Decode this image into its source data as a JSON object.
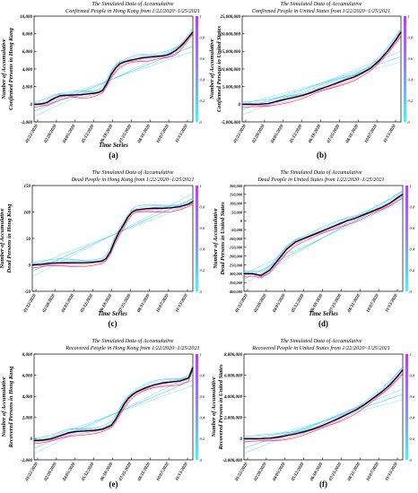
{
  "chart_data": [
    {
      "type": "line",
      "panel_label": "(a)",
      "title_line1": "The Simulated Data of Accumulative",
      "title_line2": "Confirmed People in Hong Kong from 1/22/2020~1/25/2021",
      "xlabel": "Time Series",
      "ylabel_line1": "Number of Accumulative",
      "ylabel_line2": "Confirmed Persons in Hong Kong",
      "x_tick_labels": [
        "01/22/2020",
        "02/28/2020",
        "04/05/2020",
        "05/12/2020",
        "06/18/2020",
        "07/25/2020",
        "08/31/2020",
        "10/07/2020",
        "11/13/2020"
      ],
      "y_tick_labels": [
        "-2,000",
        "0",
        "2,000",
        "4,000",
        "6,000",
        "8,000",
        "10,000"
      ],
      "ylim": [
        -2000,
        10000
      ],
      "colorbar_ticks": [
        "0",
        "0.2",
        "0.4",
        "0.6",
        "0.8",
        "1"
      ],
      "x": [
        0,
        10,
        20,
        30,
        40,
        50,
        60,
        70,
        80,
        90,
        100,
        110,
        120,
        130,
        140,
        150,
        160,
        170,
        180,
        190,
        200,
        210,
        220,
        230,
        240,
        250,
        260,
        270,
        280,
        290,
        300,
        310,
        320,
        330,
        340,
        350,
        360,
        370
      ],
      "values": [
        0,
        20,
        80,
        200,
        500,
        750,
        950,
        1000,
        1030,
        1050,
        1070,
        1100,
        1150,
        1200,
        1250,
        1350,
        1600,
        2400,
        3400,
        4100,
        4600,
        4800,
        4950,
        5050,
        5150,
        5250,
        5300,
        5350,
        5400,
        5450,
        5500,
        5600,
        5800,
        6100,
        6500,
        7000,
        7600,
        8200
      ],
      "trend": [
        -800,
        6600
      ]
    },
    {
      "type": "line",
      "panel_label": "(b)",
      "title_line1": "The Simulated Data of Accumulative",
      "title_line2": "Confirmed People in United States from 1/22/2020~1/25/2021",
      "xlabel": "",
      "ylabel_line1": "Number of Accumulative",
      "ylabel_line2": "Confirmed Persons in United States",
      "x_tick_labels": [
        "01/22/2020",
        "02/28/2020",
        "04/05/2020",
        "05/12/2020",
        "06/18/2020",
        "07/25/2020",
        "08/31/2020",
        "10/07/2020",
        "11/13/2020"
      ],
      "y_tick_labels": [
        "-5,000,000",
        "0",
        "5,000,000",
        "10,000,000",
        "15,000,000",
        "20,000,000",
        "25,000,000"
      ],
      "ylim": [
        -5000000,
        25000000
      ],
      "colorbar_ticks": [
        "0",
        "0.2",
        "0.4",
        "0.6",
        "0.8",
        "1"
      ],
      "x": [
        0,
        20,
        40,
        60,
        80,
        100,
        120,
        140,
        160,
        180,
        200,
        220,
        240,
        260,
        280,
        300,
        320,
        340,
        360,
        370
      ],
      "values": [
        0,
        0,
        10000,
        200000,
        800000,
        1400000,
        1900000,
        2500000,
        3300000,
        4300000,
        5100000,
        6000000,
        6900000,
        7700000,
        8900000,
        10300000,
        12500000,
        15300000,
        18600000,
        20500000
      ],
      "trend": [
        -1500000,
        13500000
      ]
    },
    {
      "type": "line",
      "panel_label": "(c)",
      "title_line1": "The Simulated Data of Accumulative",
      "title_line2": "Dead People in Hong Kong from 1/22/2020~1/25/2021",
      "xlabel": "Time Series",
      "ylabel_line1": "Number of Accumulative",
      "ylabel_line2": "Dead Persons in Hong Kong",
      "x_tick_labels": [
        "01/22/2020",
        "02/28/2020",
        "04/05/2020",
        "05/12/2020",
        "06/18/2020",
        "07/25/2020",
        "08/31/2020",
        "10/07/2020",
        "11/13/2020"
      ],
      "y_tick_labels": [
        "-50",
        "0",
        "50",
        "100",
        "150"
      ],
      "ylim": [
        -50,
        150
      ],
      "colorbar_ticks": [
        "0",
        "0.2",
        "0.4",
        "0.6",
        "0.8",
        "1"
      ],
      "x": [
        0,
        20,
        40,
        60,
        80,
        100,
        120,
        140,
        160,
        170,
        180,
        190,
        200,
        210,
        220,
        230,
        240,
        260,
        280,
        300,
        320,
        340,
        360,
        370
      ],
      "values": [
        0,
        1,
        3,
        4,
        4,
        4,
        4,
        5,
        7,
        12,
        25,
        45,
        62,
        75,
        90,
        100,
        104,
        106,
        107,
        107,
        108,
        110,
        115,
        120
      ],
      "trend": [
        -12,
        125
      ]
    },
    {
      "type": "line",
      "panel_label": "(d)",
      "title_line1": "The Simulated Data of Accumulative",
      "title_line2": "Dead People in United States from 1/22/2020~1/25/2021",
      "xlabel": "Time Series",
      "ylabel_line1": "Number of Accumulative",
      "ylabel_line2": "Dead Persons in United States",
      "x_tick_labels": [
        "01/22/2020",
        "02/28/2020",
        "04/05/2020",
        "05/12/2020",
        "06/18/2020",
        "07/25/2020",
        "08/31/2020",
        "10/07/2020",
        "11/13/2020"
      ],
      "y_tick_labels": [
        "-400,000",
        "-350,000",
        "-300,000",
        "-250,000",
        "-200,000",
        "-150,000",
        "-100,000",
        "-50,000",
        "0",
        "50,000",
        "100,000",
        "150,000",
        "200,000"
      ],
      "ylim": [
        -400000,
        200000
      ],
      "colorbar_ticks": [
        "0",
        "0.2",
        "0.4",
        "0.6",
        "0.8",
        "1"
      ],
      "x": [
        0,
        20,
        40,
        60,
        80,
        100,
        120,
        140,
        160,
        180,
        200,
        220,
        240,
        260,
        280,
        300,
        320,
        340,
        360,
        370
      ],
      "values": [
        -300000,
        -300000,
        -310000,
        -280000,
        -220000,
        -160000,
        -120000,
        -100000,
        -80000,
        -60000,
        -40000,
        -20000,
        0,
        15000,
        35000,
        55000,
        75000,
        100000,
        135000,
        150000
      ],
      "trend": [
        -330000,
        140000
      ]
    },
    {
      "type": "line",
      "panel_label": "(e)",
      "title_line1": "The Simulated Data of Accumulative",
      "title_line2": "Recovered People in Hong Kong from 1/22/2020~1/25/2021",
      "xlabel": "Time Series",
      "ylabel_line1": "Number of Accumulative",
      "ylabel_line2": "Recovered Persons in Hong Kong",
      "x_tick_labels": [
        "01/22/2020",
        "02/28/2020",
        "04/05/2020",
        "05/12/2020",
        "06/18/2020",
        "07/25/2020",
        "08/31/2020",
        "10/07/2020",
        "11/13/2020"
      ],
      "y_tick_labels": [
        "-2,000",
        "0",
        "2,000",
        "4,000",
        "6,000",
        "8,000"
      ],
      "ylim": [
        -2000,
        9000
      ],
      "colorbar_ticks": [
        "0",
        "0.2",
        "0.4",
        "0.6",
        "0.8",
        "1"
      ],
      "x": [
        0,
        20,
        40,
        60,
        80,
        100,
        120,
        140,
        160,
        180,
        190,
        200,
        210,
        220,
        230,
        240,
        260,
        280,
        300,
        320,
        340,
        360,
        370
      ],
      "values": [
        0,
        50,
        200,
        500,
        800,
        950,
        1000,
        1050,
        1200,
        1600,
        2200,
        3000,
        3800,
        4400,
        4800,
        5100,
        5500,
        5800,
        6000,
        6100,
        6200,
        6500,
        7600
      ],
      "trend": [
        -800,
        6300
      ]
    },
    {
      "type": "line",
      "panel_label": "(f)",
      "title_line1": "The Simulated Data of Accumulative",
      "title_line2": "Recovered People in United States from 1/22/2020~1/25/2021",
      "xlabel": "",
      "ylabel_line1": "Number of Accumulative",
      "ylabel_line2": "Recovered Persons in United States",
      "x_tick_labels": [
        "01/22/2020",
        "02/28/2020",
        "04/05/2020",
        "05/12/2020",
        "06/18/2020",
        "07/25/2020",
        "08/31/2020",
        "10/07/2020",
        "11/13/2020"
      ],
      "y_tick_labels": [
        "-2,000,000",
        "0",
        "2,000,000",
        "4,000,000",
        "6,000,000",
        "8,000,000"
      ],
      "ylim": [
        -2000000,
        8000000
      ],
      "colorbar_ticks": [
        "0",
        "0.2",
        "0.4",
        "0.6",
        "0.8",
        "1"
      ],
      "x": [
        0,
        20,
        40,
        60,
        80,
        100,
        120,
        140,
        160,
        180,
        200,
        220,
        240,
        260,
        280,
        300,
        320,
        340,
        360,
        370
      ],
      "values": [
        0,
        0,
        5000,
        50000,
        150000,
        300000,
        450000,
        650000,
        900000,
        1200000,
        1550000,
        1900000,
        2300000,
        2700000,
        3200000,
        3800000,
        4400000,
        5100000,
        6000000,
        6500000
      ],
      "trend": [
        -900000,
        4200000
      ]
    }
  ],
  "colors": {
    "observed": "#000000",
    "fit_curves": [
      "#ff0000",
      "#ff66cc",
      "#cc66ff",
      "#9999ff",
      "#66ccff",
      "#33cccc"
    ],
    "trend": "#33ccff",
    "colorbar_top": "#cc33ff",
    "colorbar_mid": "#8888ff",
    "colorbar_bottom": "#33ffff"
  }
}
